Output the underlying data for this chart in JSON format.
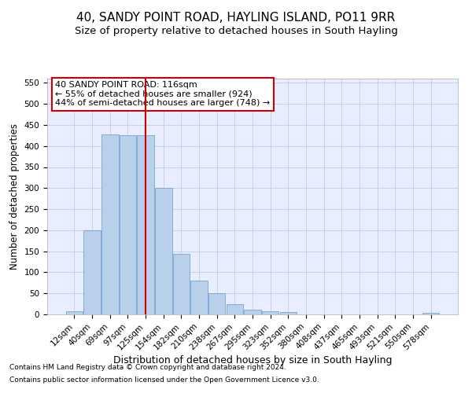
{
  "title": "40, SANDY POINT ROAD, HAYLING ISLAND, PO11 9RR",
  "subtitle": "Size of property relative to detached houses in South Hayling",
  "xlabel": "Distribution of detached houses by size in South Hayling",
  "ylabel": "Number of detached properties",
  "footnote1": "Contains HM Land Registry data © Crown copyright and database right 2024.",
  "footnote2": "Contains public sector information licensed under the Open Government Licence v3.0.",
  "categories": [
    "12sqm",
    "40sqm",
    "69sqm",
    "97sqm",
    "125sqm",
    "154sqm",
    "182sqm",
    "210sqm",
    "238sqm",
    "267sqm",
    "295sqm",
    "323sqm",
    "352sqm",
    "380sqm",
    "408sqm",
    "437sqm",
    "465sqm",
    "493sqm",
    "521sqm",
    "550sqm",
    "578sqm"
  ],
  "values": [
    8,
    200,
    428,
    425,
    425,
    300,
    143,
    80,
    50,
    25,
    12,
    8,
    6,
    0,
    0,
    0,
    0,
    0,
    0,
    0,
    3
  ],
  "bar_color": "#b8d0ea",
  "bar_edge_color": "#6699cc",
  "reference_line_x": 4.0,
  "reference_line_color": "#cc0000",
  "ylim": [
    0,
    560
  ],
  "yticks": [
    0,
    50,
    100,
    150,
    200,
    250,
    300,
    350,
    400,
    450,
    500,
    550
  ],
  "annotation_line1": "40 SANDY POINT ROAD: 116sqm",
  "annotation_line2": "← 55% of detached houses are smaller (924)",
  "annotation_line3": "44% of semi-detached houses are larger (748) →",
  "background_color": "#e8eeff",
  "grid_color": "#c0cce0",
  "title_fontsize": 11,
  "subtitle_fontsize": 9.5,
  "xlabel_fontsize": 9,
  "ylabel_fontsize": 8.5,
  "annotation_fontsize": 8,
  "tick_fontsize": 7.5,
  "footnote_fontsize": 6.5,
  "bar_width": 0.95
}
